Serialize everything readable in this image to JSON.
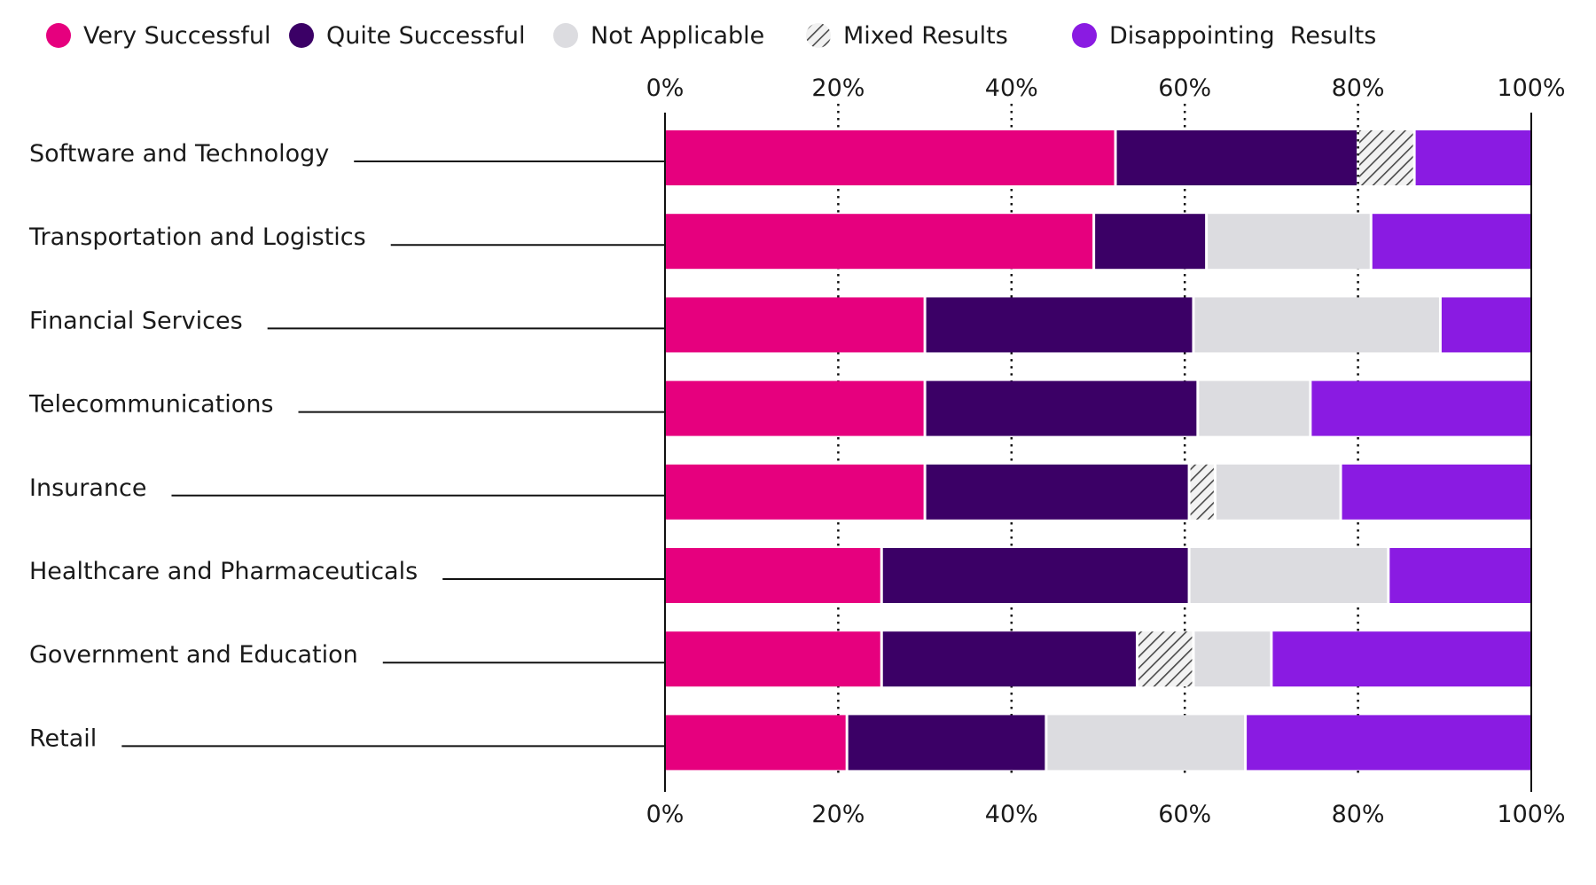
{
  "chart_data": {
    "type": "bar",
    "orientation": "horizontal",
    "stacked": true,
    "percent": true,
    "title": "",
    "xlabel": "",
    "ylabel": "",
    "xlim": [
      0,
      100
    ],
    "xticks": [
      "0%",
      "20%",
      "40%",
      "60%",
      "80%",
      "100%"
    ],
    "xtick_values": [
      0,
      20,
      40,
      60,
      80,
      100
    ],
    "grid": "dotted vertical lines at 20%, 40%, 60%, 80%",
    "legend_position": "top",
    "categories": [
      "Software and Technology",
      "Transportation and Logistics",
      "Financial Services",
      "Telecommunications",
      "Insurance",
      "Healthcare and Pharmaceuticals",
      "Government and Education",
      "Retail"
    ],
    "series": [
      {
        "name": "Very Successful",
        "color": "#e6007e",
        "pattern": false,
        "values": [
          52,
          49.5,
          30,
          30,
          30,
          25,
          25,
          21
        ]
      },
      {
        "name": "Quite Successful",
        "color": "#3b0066",
        "pattern": false,
        "values": [
          28,
          13,
          31,
          31.5,
          30.5,
          35.5,
          29.5,
          23
        ]
      },
      {
        "name": "Not Applicable",
        "color": "#dcdce0",
        "pattern": false,
        "values": [
          0,
          19,
          28.5,
          13,
          14.5,
          23,
          9,
          23
        ]
      },
      {
        "name": "Mixed Results",
        "color": "#5a5a5a",
        "pattern": true,
        "values": [
          6.5,
          0,
          0,
          0,
          3,
          0,
          6.5,
          0
        ]
      },
      {
        "name": "Disappointing  Results",
        "color": "#8a1be2",
        "pattern": false,
        "values": [
          13.5,
          18.5,
          10.5,
          25.5,
          22,
          16.5,
          30,
          33
        ]
      }
    ],
    "segment_order": [
      "Very Successful",
      "Quite Successful",
      "Mixed Results",
      "Not Applicable",
      "Disappointing  Results"
    ],
    "segment_order_overrides": {
      "Software and Technology": [
        "Very Successful",
        "Quite Successful",
        "Mixed Results",
        "Not Applicable",
        "Disappointing  Results"
      ],
      "Transportation and Logistics": [
        "Very Successful",
        "Quite Successful",
        "Not Applicable",
        "Mixed Results",
        "Disappointing  Results"
      ],
      "Financial Services": [
        "Very Successful",
        "Quite Successful",
        "Not Applicable",
        "Mixed Results",
        "Disappointing  Results"
      ],
      "Telecommunications": [
        "Very Successful",
        "Quite Successful",
        "Not Applicable",
        "Mixed Results",
        "Disappointing  Results"
      ],
      "Insurance": [
        "Very Successful",
        "Quite Successful",
        "Mixed Results",
        "Not Applicable",
        "Disappointing  Results"
      ],
      "Healthcare and Pharmaceuticals": [
        "Very Successful",
        "Quite Successful",
        "Not Applicable",
        "Mixed Results",
        "Disappointing  Results"
      ],
      "Government and Education": [
        "Very Successful",
        "Quite Successful",
        "Mixed Results",
        "Not Applicable",
        "Disappointing  Results"
      ],
      "Retail": [
        "Very Successful",
        "Quite Successful",
        "Not Applicable",
        "Mixed Results",
        "Disappointing  Results"
      ]
    }
  }
}
